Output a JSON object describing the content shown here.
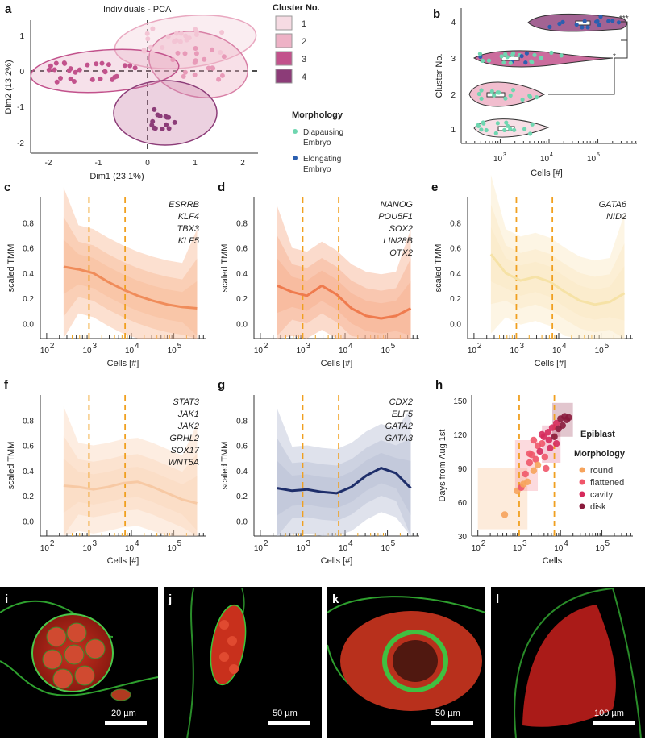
{
  "panel_labels": [
    "a",
    "b",
    "c",
    "d",
    "e",
    "f",
    "g",
    "h",
    "i",
    "j",
    "k",
    "l"
  ],
  "colors": {
    "cluster1": "#f6dbe3",
    "cluster2": "#eeb2c6",
    "cluster3": "#c2528c",
    "cluster4": "#8c3c78",
    "diapausing": "#6fd6b0",
    "elongating": "#2b5fb0",
    "orange_line": "#f39a4a",
    "c_line": "#f08c5a",
    "d_line": "#ef7b4e",
    "e_line": "#f6e2a6",
    "f_line": "#f7c9a4",
    "g_line": "#1e2e6a",
    "vline": "#f0a020"
  },
  "panel_a": {
    "title": "Individuals - PCA",
    "xlabel": "Dim1 (23.1%)",
    "ylabel": "Dim2 (13.2%)",
    "xticks": [
      "-2",
      "-1",
      "0",
      "1",
      "2"
    ],
    "yticks": [
      "1",
      "0",
      "-1",
      "-2"
    ]
  },
  "cluster_legend": {
    "title": "Cluster No.",
    "items": [
      "1",
      "2",
      "3",
      "4"
    ]
  },
  "morphology_legend": {
    "title": "Morphology",
    "items": [
      {
        "line1": "Diapausing",
        "line2": "Embryo"
      },
      {
        "line1": "Elongating",
        "line2": "Embryo"
      }
    ]
  },
  "panel_b": {
    "ylabel": "Cluster No.",
    "xlabel": "Cells [#]",
    "yticks": [
      "4",
      "3",
      "2",
      "1"
    ],
    "xticks": [
      "10",
      "10",
      "10"
    ],
    "xexp": [
      "3",
      "4",
      "5"
    ],
    "sig1": "***",
    "sig2": "*"
  },
  "trend_panels": {
    "ylabel": "scaled TMM",
    "xlabel": "Cells [#]",
    "yticks": [
      "0.8",
      "0.6",
      "0.4",
      "0.2",
      "0.0"
    ],
    "xbase": "10",
    "xexp": [
      "2",
      "3",
      "4",
      "5"
    ]
  },
  "genes": {
    "c": [
      "ESRRB",
      "KLF4",
      "TBX3",
      "KLF5"
    ],
    "d": [
      "NANOG",
      "POU5F1",
      "SOX2",
      "LIN28B",
      "OTX2"
    ],
    "e": [
      "GATA6",
      "NID2"
    ],
    "f": [
      "STAT3",
      "JAK1",
      "JAK2",
      "GRHL2",
      "SOX17",
      "WNT5A"
    ],
    "g": [
      "CDX2",
      "ELF5",
      "GATA2",
      "GATA3"
    ]
  },
  "panel_h": {
    "ylabel": "Days from Aug 1st",
    "xlabel": "Cells",
    "yticks": [
      "150",
      "120",
      "90",
      "60",
      "30"
    ],
    "legend_title1": "Epiblast",
    "legend_title2": "Morphology",
    "legend_items": [
      "round",
      "flattened",
      "cavity",
      "disk"
    ],
    "legend_colors": [
      "#f6a35c",
      "#f0566a",
      "#d62a5c",
      "#8a1a3c"
    ]
  },
  "micrographs": {
    "i": "20 µm",
    "j": "50 µm",
    "k": "50 µm",
    "l": "100 µm"
  }
}
